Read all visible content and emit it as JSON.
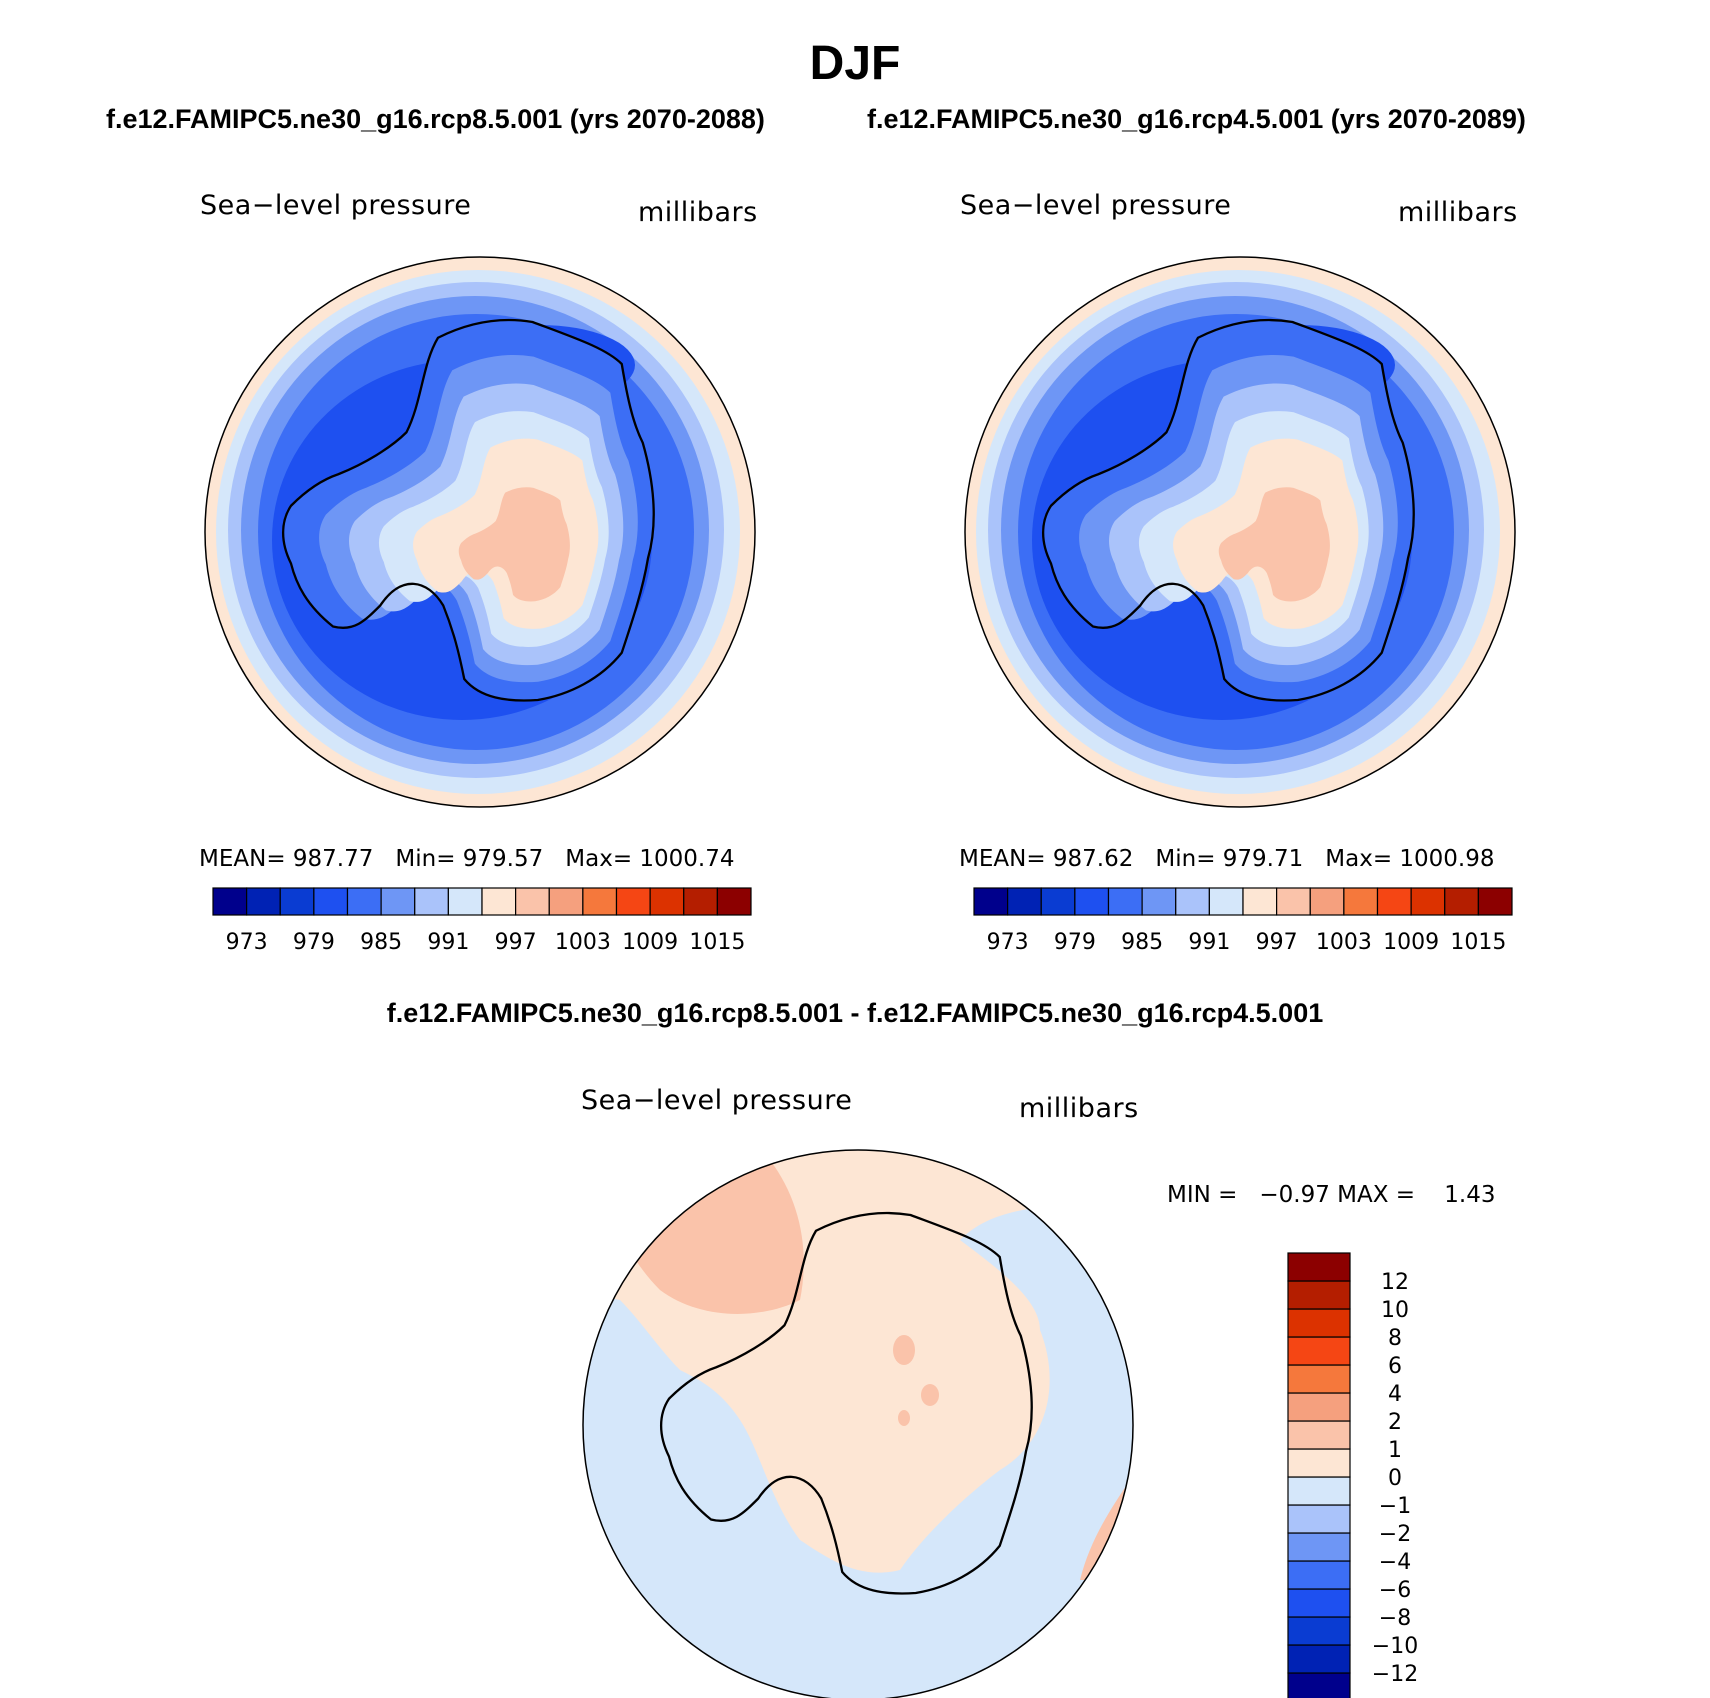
{
  "title": "DJF",
  "panel_a": {
    "case": "f.e12.FAMIPC5.ne30_g16.rcp8.5.001 (yrs 2070-2088)",
    "field": "Sea−level pressure",
    "units": "millibars",
    "stats": {
      "mean": "MEAN= 987.77",
      "min": "Min= 979.57",
      "max": "Max= 1000.74"
    }
  },
  "panel_b": {
    "case": "f.e12.FAMIPC5.ne30_g16.rcp4.5.001 (yrs 2070-2089)",
    "field": "Sea−level pressure",
    "units": "millibars",
    "stats": {
      "mean": "MEAN= 987.62",
      "min": "Min= 979.71",
      "max": "Max= 1000.98"
    }
  },
  "panel_diff": {
    "case": "f.e12.FAMIPC5.ne30_g16.rcp8.5.001 - f.e12.FAMIPC5.ne30_g16.rcp4.5.001",
    "field": "Sea−level pressure",
    "units": "millibars",
    "stats": {
      "min": "MIN =   −0.97 MAX =    1.43"
    }
  },
  "colorbar_abs": {
    "colors": [
      "#00008c",
      "#0022b4",
      "#0a3cd2",
      "#1e50f0",
      "#3c6ef5",
      "#6e96f5",
      "#aac3fa",
      "#d5e7fa",
      "#fde6d4",
      "#fac3aa",
      "#f5a07e",
      "#f5783c",
      "#f54614",
      "#dc3200",
      "#b41e00",
      "#8c0000"
    ],
    "labels": [
      "973",
      "979",
      "985",
      "991",
      "997",
      "1003",
      "1009",
      "1015"
    ]
  },
  "colorbar_diff": {
    "colors": [
      "#00008c",
      "#0022b4",
      "#0a3cd2",
      "#1e50f0",
      "#3c6ef5",
      "#6e96f5",
      "#aac3fa",
      "#d5e7fa",
      "#fde6d4",
      "#fac3aa",
      "#f5a07e",
      "#f5783c",
      "#f54614",
      "#dc3200",
      "#b41e00",
      "#8c0000"
    ],
    "labels": [
      "−12",
      "−10",
      "−8",
      "−6",
      "−4",
      "−2",
      "−1",
      "0",
      "1",
      "2",
      "4",
      "6",
      "8",
      "10",
      "12"
    ]
  },
  "map_colors": {
    "ocean_low": "#1e50f0",
    "ring1": "#3c6ef5",
    "ring2": "#6e96f5",
    "ring3": "#aac3fa",
    "ring4": "#d5e7fa",
    "ring5": "#fde6d4",
    "ring6": "#fac3aa",
    "land_high": "#fac3aa",
    "diff_neg": "#d5e7fa",
    "diff_pos": "#fde6d4",
    "diff_pos2": "#fac3aa"
  }
}
